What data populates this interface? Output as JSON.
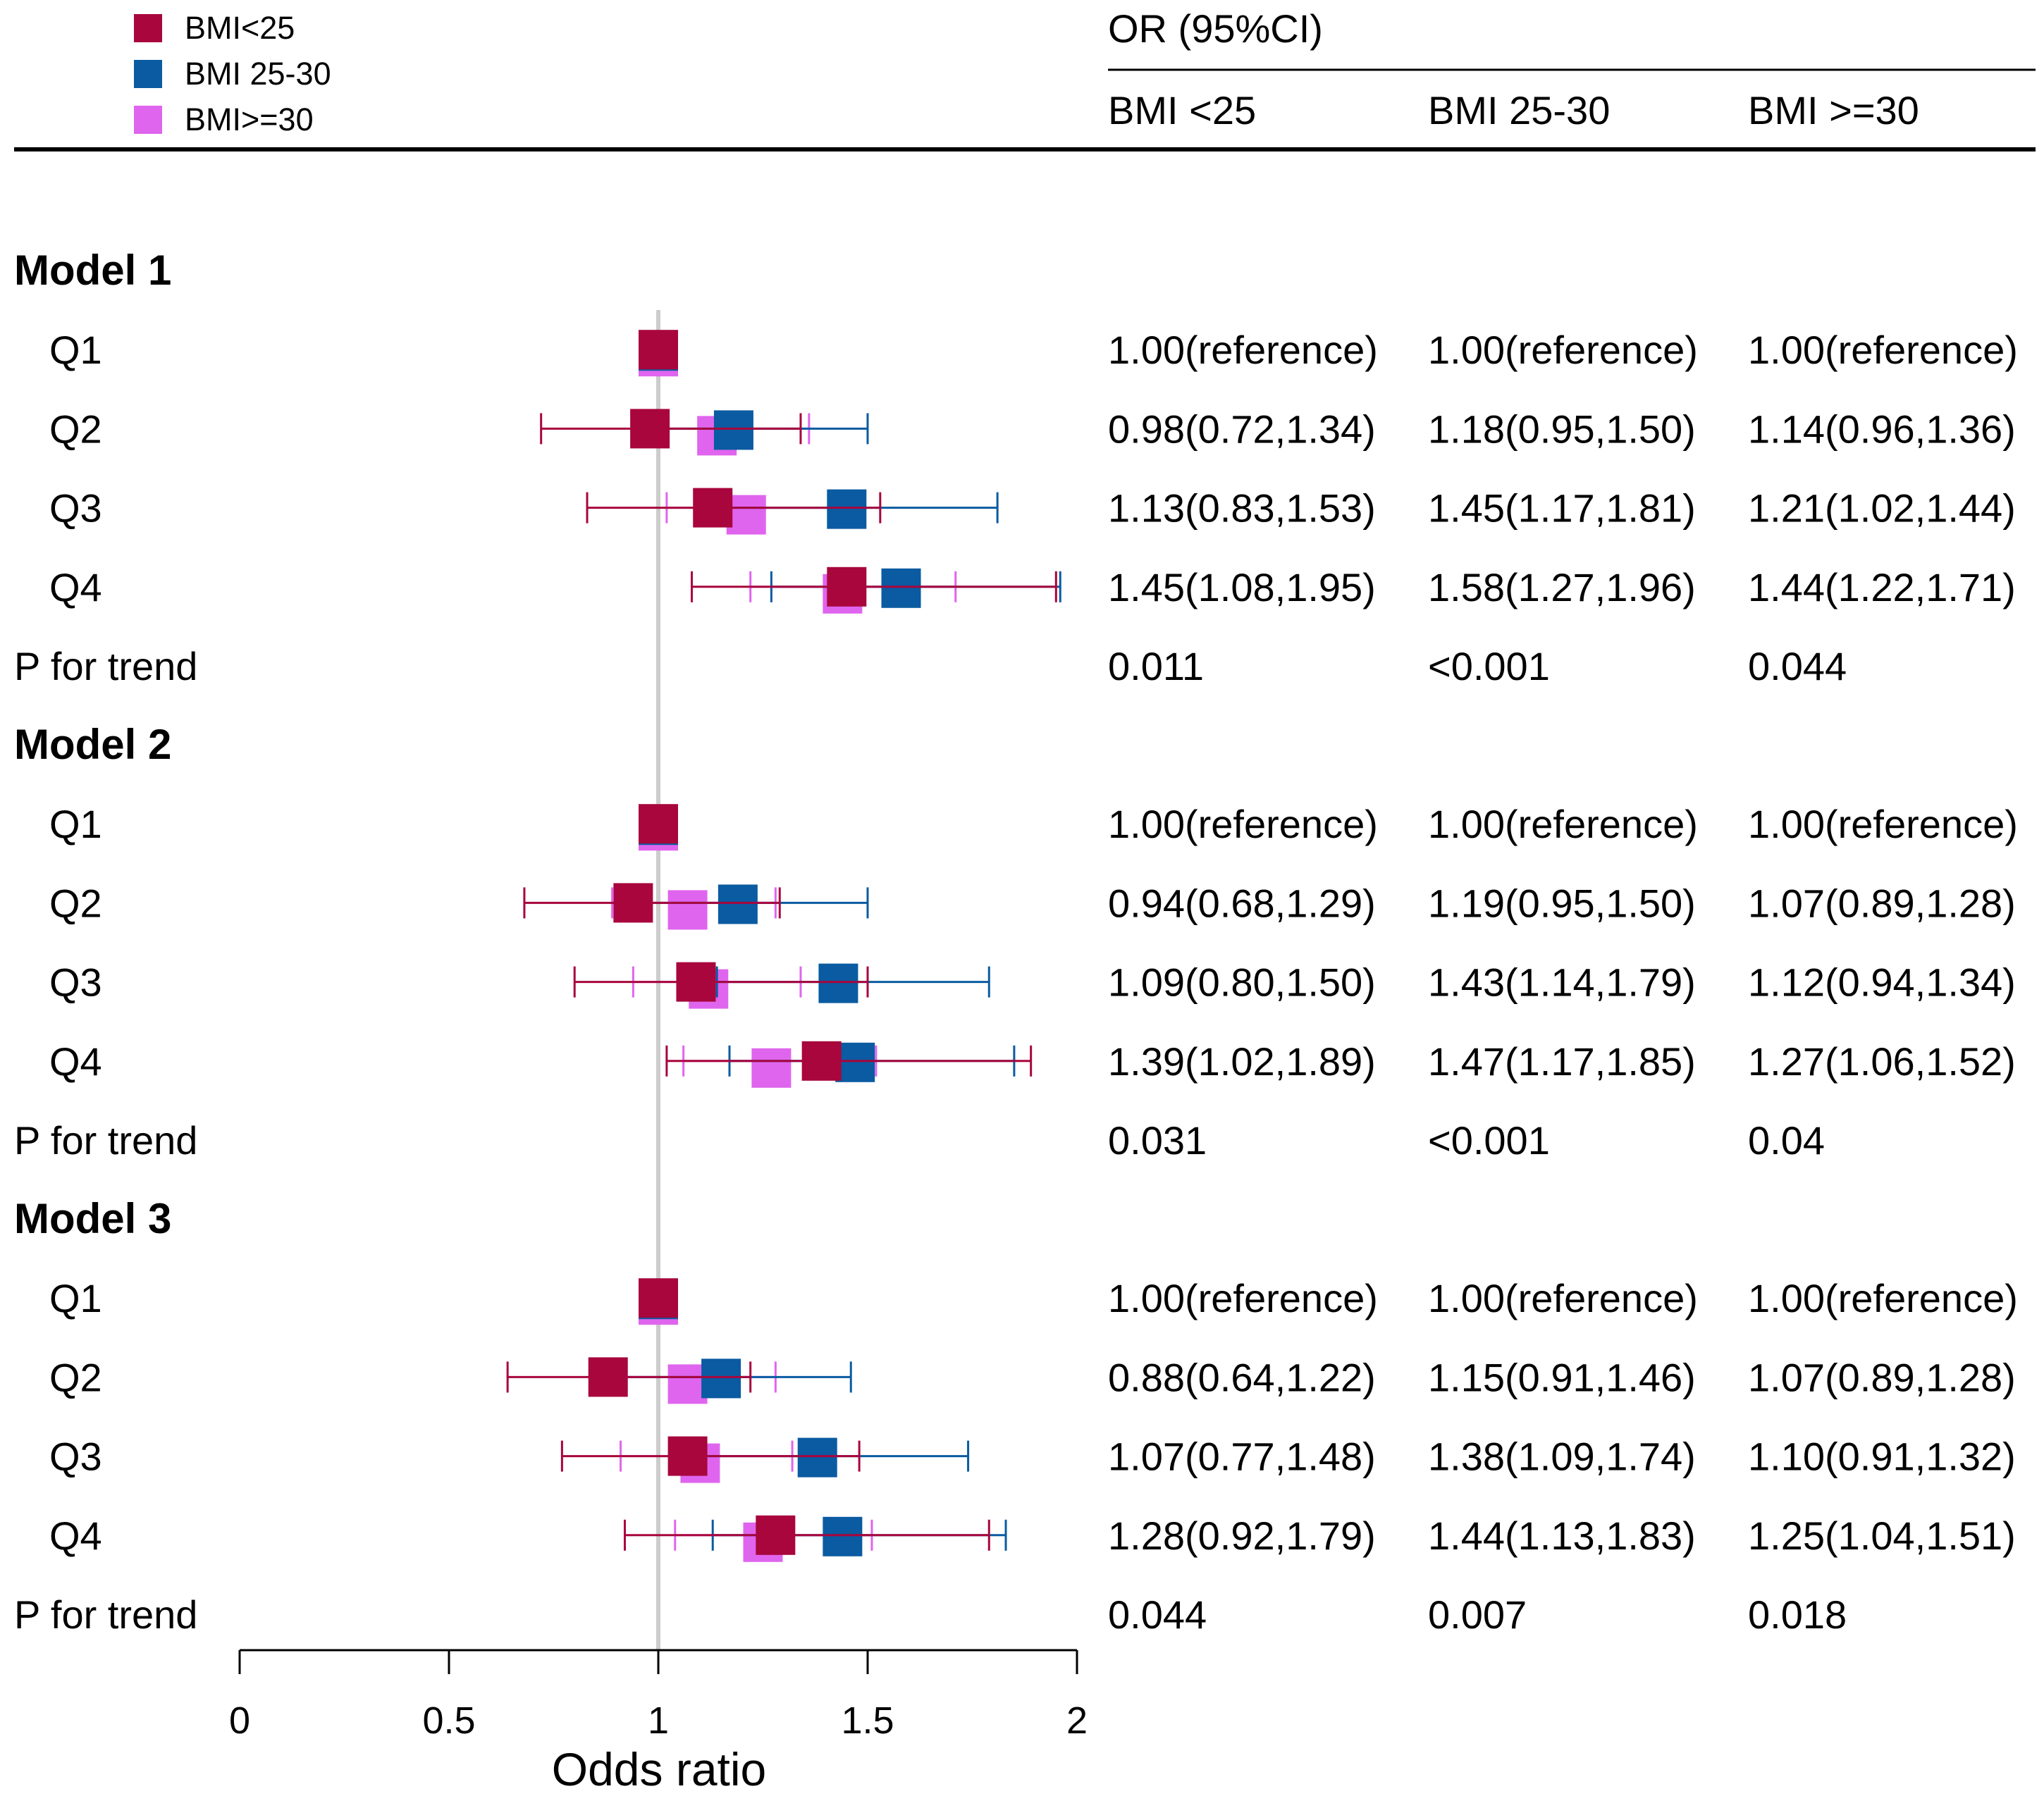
{
  "chart_data": {
    "type": "forest",
    "xlabel": "Odds ratio",
    "xlim": [
      0,
      2
    ],
    "xticks": [
      "0",
      "0.5",
      "1",
      "1.5",
      "2"
    ],
    "reference_line": 1,
    "legend": [
      {
        "name": "BMI<25",
        "color": "#A8063C"
      },
      {
        "name": "BMI 25-30",
        "color": "#0A5BA1"
      },
      {
        "name": "BMI>=30",
        "color": "#E065EE"
      }
    ],
    "table_header": {
      "title": "OR (95%CI)",
      "columns": [
        "BMI <25",
        "BMI 25-30",
        "BMI >=30"
      ]
    },
    "models": [
      {
        "name": "Model 1",
        "rows": [
          {
            "label": "Q1",
            "text": [
              "1.00(reference)",
              "1.00(reference)",
              "1.00(reference)"
            ],
            "est": [
              [
                1.0,
                1.0,
                1.0
              ],
              [
                1.0,
                1.0,
                1.0
              ],
              [
                1.0,
                1.0,
                1.0
              ]
            ]
          },
          {
            "label": "Q2",
            "text": [
              "0.98(0.72,1.34)",
              "1.18(0.95,1.50)",
              "1.14(0.96,1.36)"
            ],
            "est": [
              [
                0.98,
                0.72,
                1.34
              ],
              [
                1.18,
                0.95,
                1.5
              ],
              [
                1.14,
                0.96,
                1.36
              ]
            ]
          },
          {
            "label": "Q3",
            "text": [
              "1.13(0.83,1.53)",
              "1.45(1.17,1.81)",
              "1.21(1.02,1.44)"
            ],
            "est": [
              [
                1.13,
                0.83,
                1.53
              ],
              [
                1.45,
                1.17,
                1.81
              ],
              [
                1.21,
                1.02,
                1.44
              ]
            ]
          },
          {
            "label": "Q4",
            "text": [
              "1.45(1.08,1.95)",
              "1.58(1.27,1.96)",
              "1.44(1.22,1.71)"
            ],
            "est": [
              [
                1.45,
                1.08,
                1.95
              ],
              [
                1.58,
                1.27,
                1.96
              ],
              [
                1.44,
                1.22,
                1.71
              ]
            ]
          }
        ],
        "trend": {
          "label": "P for trend",
          "values": [
            "0.011",
            "<0.001",
            "0.044"
          ]
        }
      },
      {
        "name": "Model 2",
        "rows": [
          {
            "label": "Q1",
            "text": [
              "1.00(reference)",
              "1.00(reference)",
              "1.00(reference)"
            ],
            "est": [
              [
                1.0,
                1.0,
                1.0
              ],
              [
                1.0,
                1.0,
                1.0
              ],
              [
                1.0,
                1.0,
                1.0
              ]
            ]
          },
          {
            "label": "Q2",
            "text": [
              "0.94(0.68,1.29)",
              "1.19(0.95,1.50)",
              "1.07(0.89,1.28)"
            ],
            "est": [
              [
                0.94,
                0.68,
                1.29
              ],
              [
                1.19,
                0.95,
                1.5
              ],
              [
                1.07,
                0.89,
                1.28
              ]
            ]
          },
          {
            "label": "Q3",
            "text": [
              "1.09(0.80,1.50)",
              "1.43(1.14,1.79)",
              "1.12(0.94,1.34)"
            ],
            "est": [
              [
                1.09,
                0.8,
                1.5
              ],
              [
                1.43,
                1.14,
                1.79
              ],
              [
                1.12,
                0.94,
                1.34
              ]
            ]
          },
          {
            "label": "Q4",
            "text": [
              "1.39(1.02,1.89)",
              "1.47(1.17,1.85)",
              "1.27(1.06,1.52)"
            ],
            "est": [
              [
                1.39,
                1.02,
                1.89
              ],
              [
                1.47,
                1.17,
                1.85
              ],
              [
                1.27,
                1.06,
                1.52
              ]
            ]
          }
        ],
        "trend": {
          "label": "P for trend",
          "values": [
            "0.031",
            "<0.001",
            "0.04"
          ]
        }
      },
      {
        "name": "Model 3",
        "rows": [
          {
            "label": "Q1",
            "text": [
              "1.00(reference)",
              "1.00(reference)",
              "1.00(reference)"
            ],
            "est": [
              [
                1.0,
                1.0,
                1.0
              ],
              [
                1.0,
                1.0,
                1.0
              ],
              [
                1.0,
                1.0,
                1.0
              ]
            ]
          },
          {
            "label": "Q2",
            "text": [
              "0.88(0.64,1.22)",
              "1.15(0.91,1.46)",
              "1.07(0.89,1.28)"
            ],
            "est": [
              [
                0.88,
                0.64,
                1.22
              ],
              [
                1.15,
                0.91,
                1.46
              ],
              [
                1.07,
                0.89,
                1.28
              ]
            ]
          },
          {
            "label": "Q3",
            "text": [
              "1.07(0.77,1.48)",
              "1.38(1.09,1.74)",
              "1.10(0.91,1.32)"
            ],
            "est": [
              [
                1.07,
                0.77,
                1.48
              ],
              [
                1.38,
                1.09,
                1.74
              ],
              [
                1.1,
                0.91,
                1.32
              ]
            ]
          },
          {
            "label": "Q4",
            "text": [
              "1.28(0.92,1.79)",
              "1.44(1.13,1.83)",
              "1.25(1.04,1.51)"
            ],
            "est": [
              [
                1.28,
                0.92,
                1.79
              ],
              [
                1.44,
                1.13,
                1.83
              ],
              [
                1.25,
                1.04,
                1.51
              ]
            ]
          }
        ],
        "trend": {
          "label": "P for trend",
          "values": [
            "0.044",
            "0.007",
            "0.018"
          ]
        }
      }
    ]
  }
}
